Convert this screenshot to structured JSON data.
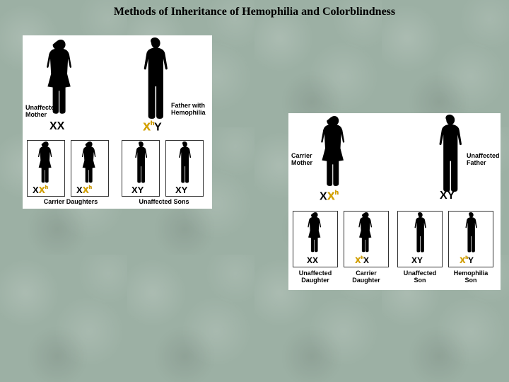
{
  "title": "Methods of Inheritance of Hemophilia and Colorblindness",
  "colors": {
    "background": "#9cb0a4",
    "panel_bg": "#ffffff",
    "silhouette": "#000000",
    "text": "#000000",
    "accent_gold": "#d6a300",
    "accent_red": "#cc3333",
    "box_border": "#333333"
  },
  "left_panel": {
    "parents": [
      {
        "label": "Unaffected\nMother",
        "genotype_parts": [
          {
            "t": "X"
          },
          {
            "t": "X"
          }
        ],
        "sex": "F"
      },
      {
        "label": "Father with\nHemophilia",
        "genotype_parts": [
          {
            "t": "X",
            "accent": true
          },
          {
            "t": "h",
            "sup": true,
            "accent": true
          },
          {
            "t": "Y"
          }
        ],
        "sex": "M"
      }
    ],
    "offspring_caption_left": "Carrier Daughters",
    "offspring_caption_right": "Unaffected Sons",
    "offspring": [
      {
        "genotype_parts": [
          {
            "t": "X"
          },
          {
            "t": "X",
            "accent": true
          },
          {
            "t": "h",
            "sup": true,
            "accent": true
          }
        ],
        "sex": "F"
      },
      {
        "genotype_parts": [
          {
            "t": "X"
          },
          {
            "t": "X",
            "accent": true
          },
          {
            "t": "h",
            "sup": true,
            "accent": true
          }
        ],
        "sex": "F"
      },
      {
        "genotype_parts": [
          {
            "t": "X"
          },
          {
            "t": "Y"
          }
        ],
        "sex": "M"
      },
      {
        "genotype_parts": [
          {
            "t": "X"
          },
          {
            "t": "Y"
          }
        ],
        "sex": "M"
      }
    ]
  },
  "right_panel": {
    "parents": [
      {
        "label": "Carrier\nMother",
        "genotype_parts": [
          {
            "t": "X"
          },
          {
            "t": "X",
            "accent": true
          },
          {
            "t": "h",
            "sup": true,
            "accent": true
          }
        ],
        "sex": "F"
      },
      {
        "label": "Unaffected\nFather",
        "genotype_parts": [
          {
            "t": "X"
          },
          {
            "t": "Y"
          }
        ],
        "sex": "M"
      }
    ],
    "offspring": [
      {
        "caption": "Unaffected\nDaughter",
        "genotype_parts": [
          {
            "t": "X"
          },
          {
            "t": "X"
          }
        ],
        "sex": "F"
      },
      {
        "caption": "Carrier\nDaughter",
        "genotype_parts": [
          {
            "t": "X",
            "accent": true
          },
          {
            "t": "h",
            "sup": true,
            "accent": true
          },
          {
            "t": "X"
          }
        ],
        "sex": "F"
      },
      {
        "caption": "Unaffected\nSon",
        "genotype_parts": [
          {
            "t": "X"
          },
          {
            "t": "Y"
          }
        ],
        "sex": "M"
      },
      {
        "caption": "Hemophilia\nSon",
        "caption_accent": true,
        "genotype_parts": [
          {
            "t": "X",
            "accent": true
          },
          {
            "t": "h",
            "sup": true,
            "accent": true
          },
          {
            "t": "Y"
          }
        ],
        "sex": "M"
      }
    ]
  }
}
